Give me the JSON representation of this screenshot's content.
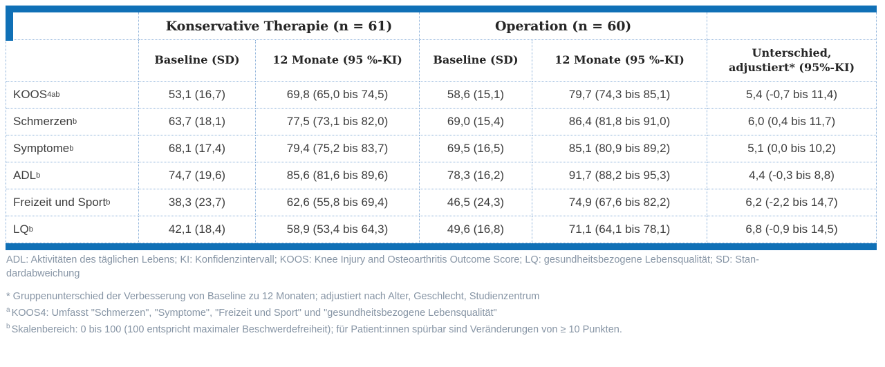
{
  "palette": {
    "accent_blue": "#1070b6",
    "dotted_border_blue": "#88aed8",
    "header_text": "#262626",
    "body_text": "#3d3d3d",
    "footnote_gray": "#8795a5"
  },
  "table": {
    "group_headers": {
      "conservative": "Konservative Therapie (n = 61)",
      "operation": "Operation (n = 60)"
    },
    "col_headers": {
      "kons_baseline": "Baseline (SD)",
      "kons_12m": "12 Monate (95 %-KI)",
      "op_baseline": "Baseline (SD)",
      "op_12m": "12 Monate (95 %-KI)",
      "diff_line1": "Unterschied,",
      "diff_line2": "adjustiert* (95%-KI)"
    },
    "rows": [
      {
        "label": "KOOS",
        "label_sub": "4",
        "label_sup": "ab",
        "kons_baseline": "53,1 (16,7)",
        "kons_12m": "69,8 (65,0 bis 74,5)",
        "op_baseline": "58,6 (15,1)",
        "op_12m": "79,7 (74,3 bis 85,1)",
        "diff": "5,4 (-0,7 bis 11,4)"
      },
      {
        "label": "Schmerzen",
        "label_sup": "b",
        "kons_baseline": "63,7 (18,1)",
        "kons_12m": "77,5 (73,1 bis 82,0)",
        "op_baseline": "69,0 (15,4)",
        "op_12m": "86,4 (81,8 bis 91,0)",
        "diff": "6,0 (0,4 bis 11,7)"
      },
      {
        "label": "Symptome",
        "label_sup": "b",
        "kons_baseline": "68,1 (17,4)",
        "kons_12m": "79,4 (75,2 bis 83,7)",
        "op_baseline": "69,5 (16,5)",
        "op_12m": "85,1 (80,9 bis 89,2)",
        "diff": "5,1 (0,0 bis 10,2)"
      },
      {
        "label": "ADL",
        "label_sup": "b",
        "kons_baseline": "74,7 (19,6)",
        "kons_12m": "85,6 (81,6 bis 89,6)",
        "op_baseline": "78,3 (16,2)",
        "op_12m": "91,7 (88,2 bis 95,3)",
        "diff": "4,4 (-0,3 bis 8,8)"
      },
      {
        "label": "Freizeit und Sport",
        "label_sup": "b",
        "kons_baseline": "38,3 (23,7)",
        "kons_12m": "62,6 (55,8 bis 69,4)",
        "op_baseline": "46,5 (24,3)",
        "op_12m": "74,9 (67,6 bis 82,2)",
        "diff": "6,2 (-2,2 bis 14,7)"
      },
      {
        "label": "LQ",
        "label_sup": "b",
        "kons_baseline": "42,1 (18,4)",
        "kons_12m": "58,9 (53,4 bis 64,3)",
        "op_baseline": "49,6 (16,8)",
        "op_12m": "71,1 (64,1 bis 78,1)",
        "diff": "6,8 (-0,9 bis 14,5)"
      }
    ]
  },
  "footnotes": {
    "abbr_line1": "ADL: Aktivitäten des täglichen Lebens; KI: Konfidenzintervall; KOOS: Knee Injury and Osteoarthritis Outcome Score; LQ: gesundheitsbezogene Lebensqualität; SD: Stan-",
    "abbr_line2": "dardabweichung",
    "star": "* Gruppenunterschied der Verbesserung von Baseline zu 12 Monaten; adjustiert nach Alter, Geschlecht, Studienzentrum",
    "a_marker": "a",
    "a_text": "KOOS4: Umfasst \"Schmerzen\", \"Symptome\", \"Freizeit und Sport\" und \"gesundheitsbezogene Lebensqualität\"",
    "b_marker": "b",
    "b_text": "Skalenbereich: 0 bis 100 (100 entspricht maximaler Beschwerdefreiheit); für Patient:innen spürbar sind Veränderungen von ≥ 10 Punkten."
  }
}
